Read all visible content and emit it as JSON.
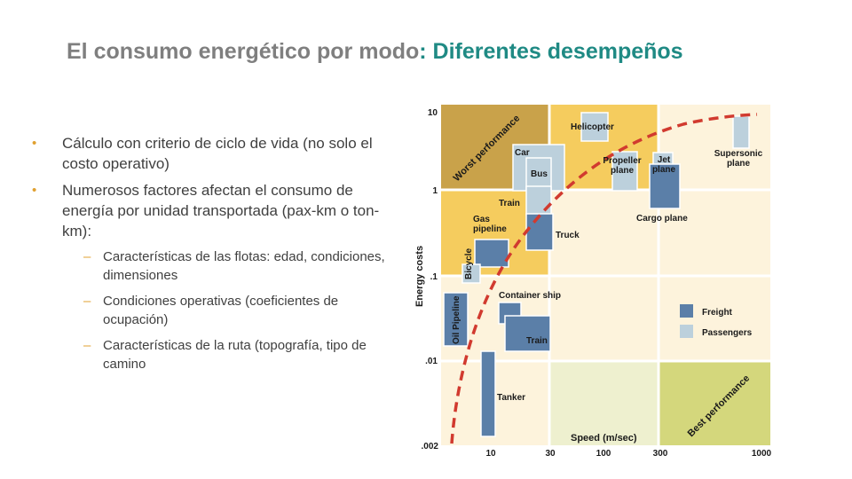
{
  "title": {
    "part1": "El consumo energético por modo",
    "part2": ": Diferentes desempeños"
  },
  "bullets": [
    "Cálculo con criterio de ciclo de vida (no solo el costo operativo)",
    "Numerosos factores afectan el consumo de energía por unidad transportada (pax-km o ton-km):"
  ],
  "subbullets": [
    "Características de las flotas: edad, condiciones, dimensiones",
    "Condiciones operativas (coeficientes de ocupación)",
    "Características de la ruta (topografía, tipo de camino"
  ],
  "diagram": {
    "y_axis_label": "Energy costs",
    "x_axis_label": "Speed (m/sec)",
    "y_ticks": [
      "10",
      "1",
      ".1",
      ".01",
      ".002"
    ],
    "x_ticks": [
      "10",
      "30",
      "100",
      "300",
      "1000"
    ],
    "worst_label": "Worst performance",
    "best_label": "Best performance",
    "legend": [
      {
        "name": "Freight",
        "color": "#5b7fa8"
      },
      {
        "name": "Passengers",
        "color": "#bcd0dc"
      }
    ],
    "modes": [
      {
        "name": "Helicopter",
        "type": "passenger"
      },
      {
        "name": "Car",
        "type": "passenger"
      },
      {
        "name": "Bus",
        "type": "passenger"
      },
      {
        "name": "Propeller plane",
        "type": "passenger"
      },
      {
        "name": "Jet plane",
        "type": "passenger"
      },
      {
        "name": "Supersonic plane",
        "type": "passenger"
      },
      {
        "name": "Train",
        "type": "passenger"
      },
      {
        "name": "Cargo plane",
        "type": "freight"
      },
      {
        "name": "Truck",
        "type": "freight"
      },
      {
        "name": "Gas pipeline",
        "type": "freight"
      },
      {
        "name": "Bicycle",
        "type": "passenger"
      },
      {
        "name": "Container ship",
        "type": "freight"
      },
      {
        "name": "Oil Pipeline",
        "type": "freight"
      },
      {
        "name": "Train",
        "type": "freight"
      },
      {
        "name": "Tanker",
        "type": "freight"
      }
    ],
    "colors": {
      "worst": "#c9a24a",
      "dark_yellow": "#f5cc5e",
      "light": "#fdf3dc",
      "best": "#d4d77c",
      "best_adjacent": "#eef0cf",
      "frontier": "#d13a2f"
    }
  }
}
